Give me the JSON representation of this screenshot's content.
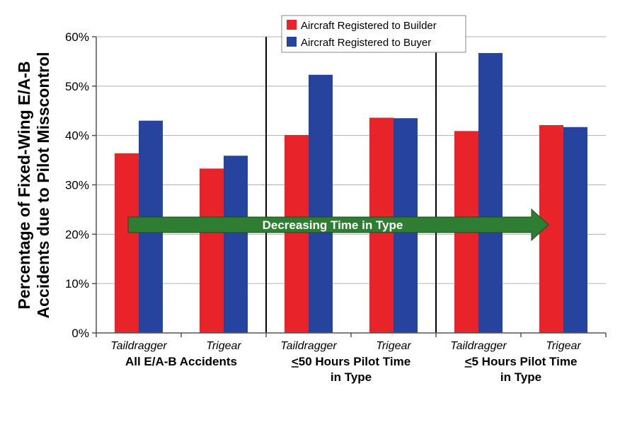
{
  "chart_data": {
    "type": "bar",
    "ylabel_lines": [
      "Percentage of Fixed-Wing E/A-B",
      "Accidents due to Pilot Misscontrol"
    ],
    "ylim": [
      0,
      60
    ],
    "yticks": [
      0,
      10,
      20,
      30,
      40,
      50,
      60
    ],
    "ytick_labels": [
      "0%",
      "10%",
      "20%",
      "30%",
      "40%",
      "50%",
      "60%"
    ],
    "grid": true,
    "categories": [
      "Taildragger",
      "Trigear",
      "Taildragger",
      "Trigear",
      "Taildragger",
      "Trigear"
    ],
    "groups": [
      {
        "lines": [
          "All E/A-B Accidents"
        ]
      },
      {
        "lines": [
          "<50 Hours Pilot Time",
          "in Type"
        ],
        "underline_first_char": true
      },
      {
        "lines": [
          "<5 Hours Pilot Time",
          "in Type"
        ],
        "underline_first_char": true
      }
    ],
    "series": [
      {
        "name": "Aircraft Registered to Builder",
        "color": "#e8242a",
        "values": [
          36.4,
          33.3,
          40.1,
          43.6,
          40.9,
          42.1
        ]
      },
      {
        "name": "Aircraft Registered to Buyer",
        "color": "#26449e",
        "values": [
          43.0,
          35.9,
          52.3,
          43.5,
          56.7,
          41.7
        ]
      }
    ],
    "legend_position": "top-center",
    "annotation": {
      "text": "Decreasing Time in Type",
      "color": "#2e7d32",
      "direction": "right"
    }
  }
}
